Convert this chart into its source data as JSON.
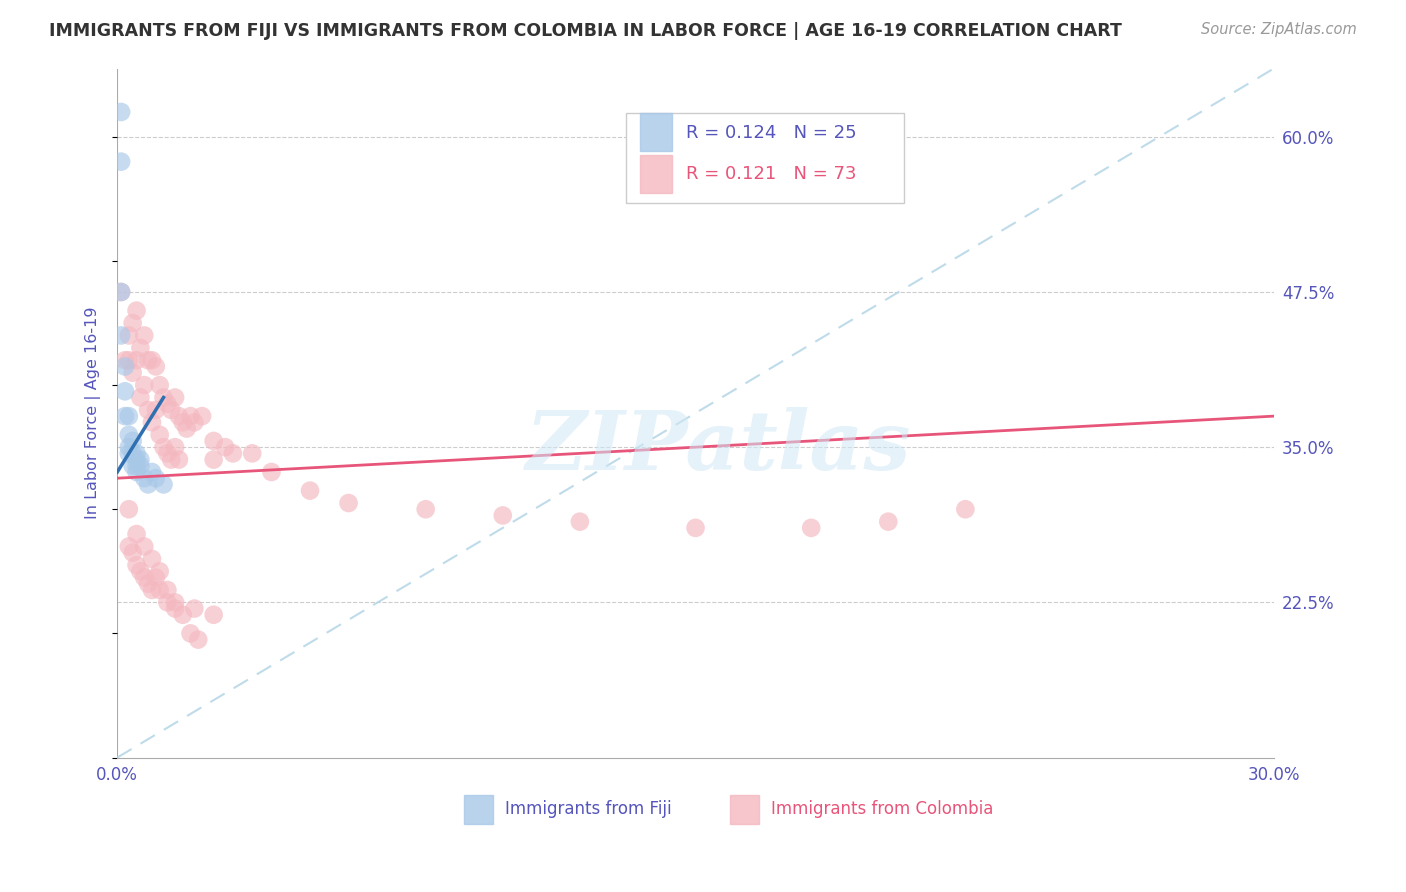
{
  "title": "IMMIGRANTS FROM FIJI VS IMMIGRANTS FROM COLOMBIA IN LABOR FORCE | AGE 16-19 CORRELATION CHART",
  "source": "Source: ZipAtlas.com",
  "ylabel": "In Labor Force | Age 16-19",
  "xlim": [
    0.0,
    0.3
  ],
  "ylim": [
    0.1,
    0.655
  ],
  "yticks": [
    0.225,
    0.35,
    0.475,
    0.6
  ],
  "ytick_labels": [
    "22.5%",
    "35.0%",
    "47.5%",
    "60.0%"
  ],
  "xtick_positions": [
    0.0,
    0.05,
    0.1,
    0.15,
    0.2,
    0.25,
    0.3
  ],
  "xtick_labels": [
    "0.0%",
    "",
    "",
    "",
    "",
    "",
    "30.0%"
  ],
  "fiji_R": 0.124,
  "fiji_N": 25,
  "colombia_R": 0.121,
  "colombia_N": 73,
  "fiji_color": "#a8c8e8",
  "colombia_color": "#f4b8c0",
  "fiji_line_color": "#3070b0",
  "colombia_line_color": "#e8557a",
  "ref_line_color": "#b8d8e8",
  "background_color": "#ffffff",
  "grid_color": "#cccccc",
  "title_color": "#333333",
  "label_color": "#5555bb",
  "source_color": "#999999",
  "watermark": "ZIPatlas",
  "legend_fiji_label": "Immigrants from Fiji",
  "legend_colombia_label": "Immigrants from Colombia",
  "fiji_x": [
    0.001,
    0.001,
    0.001,
    0.001,
    0.002,
    0.002,
    0.002,
    0.003,
    0.003,
    0.003,
    0.003,
    0.004,
    0.004,
    0.004,
    0.005,
    0.005,
    0.005,
    0.005,
    0.006,
    0.006,
    0.007,
    0.008,
    0.009,
    0.01,
    0.012
  ],
  "fiji_y": [
    0.62,
    0.58,
    0.475,
    0.44,
    0.415,
    0.395,
    0.375,
    0.375,
    0.36,
    0.35,
    0.345,
    0.355,
    0.345,
    0.335,
    0.345,
    0.34,
    0.335,
    0.33,
    0.34,
    0.335,
    0.325,
    0.32,
    0.33,
    0.325,
    0.32
  ],
  "colombia_x": [
    0.001,
    0.002,
    0.003,
    0.003,
    0.004,
    0.004,
    0.005,
    0.005,
    0.006,
    0.006,
    0.007,
    0.007,
    0.008,
    0.008,
    0.009,
    0.009,
    0.01,
    0.01,
    0.011,
    0.011,
    0.012,
    0.012,
    0.013,
    0.013,
    0.014,
    0.014,
    0.015,
    0.015,
    0.016,
    0.016,
    0.017,
    0.018,
    0.019,
    0.02,
    0.022,
    0.025,
    0.025,
    0.028,
    0.03,
    0.035,
    0.04,
    0.05,
    0.06,
    0.08,
    0.1,
    0.12,
    0.15,
    0.18,
    0.2,
    0.22,
    0.003,
    0.004,
    0.005,
    0.006,
    0.007,
    0.008,
    0.009,
    0.01,
    0.011,
    0.013,
    0.015,
    0.017,
    0.019,
    0.021,
    0.003,
    0.005,
    0.007,
    0.009,
    0.011,
    0.013,
    0.015,
    0.02,
    0.025
  ],
  "colombia_y": [
    0.475,
    0.42,
    0.44,
    0.42,
    0.45,
    0.41,
    0.46,
    0.42,
    0.43,
    0.39,
    0.44,
    0.4,
    0.42,
    0.38,
    0.42,
    0.37,
    0.415,
    0.38,
    0.4,
    0.36,
    0.39,
    0.35,
    0.385,
    0.345,
    0.38,
    0.34,
    0.39,
    0.35,
    0.375,
    0.34,
    0.37,
    0.365,
    0.375,
    0.37,
    0.375,
    0.355,
    0.34,
    0.35,
    0.345,
    0.345,
    0.33,
    0.315,
    0.305,
    0.3,
    0.295,
    0.29,
    0.285,
    0.285,
    0.29,
    0.3,
    0.27,
    0.265,
    0.255,
    0.25,
    0.245,
    0.24,
    0.235,
    0.245,
    0.235,
    0.225,
    0.22,
    0.215,
    0.2,
    0.195,
    0.3,
    0.28,
    0.27,
    0.26,
    0.25,
    0.235,
    0.225,
    0.22,
    0.215
  ],
  "fiji_trend_x": [
    0.0,
    0.012
  ],
  "fiji_trend_y": [
    0.33,
    0.39
  ],
  "colombia_trend_x": [
    0.0,
    0.3
  ],
  "colombia_trend_y": [
    0.325,
    0.375
  ],
  "ref_line_x": [
    0.0,
    0.3
  ],
  "ref_line_y": [
    0.1,
    0.655
  ]
}
